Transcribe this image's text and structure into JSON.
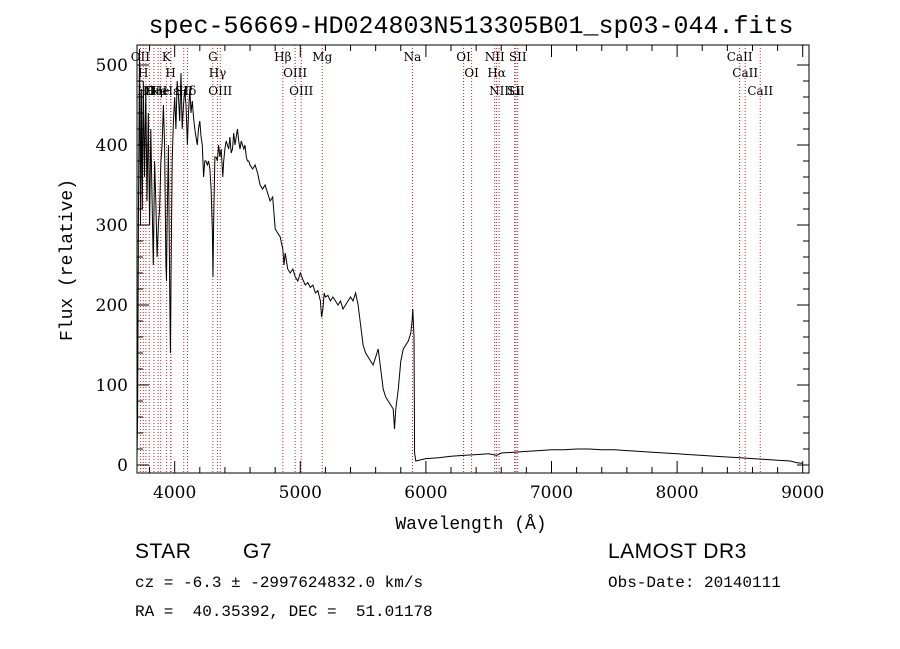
{
  "chart_data": {
    "type": "line",
    "title": "spec-56669-HD024803N513305B01_sp03-044.fits",
    "xlabel": "Wavelength (Å)",
    "ylabel": "Flux (relative)",
    "xlim": [
      3700,
      9050
    ],
    "ylim": [
      -10,
      525
    ],
    "x_ticks": [
      4000,
      5000,
      6000,
      7000,
      8000,
      9000
    ],
    "y_ticks": [
      0,
      100,
      200,
      300,
      400,
      500
    ],
    "grid": false,
    "series": [
      {
        "points": [
          [
            3700,
            10
          ],
          [
            3705,
            60
          ],
          [
            3712,
            320
          ],
          [
            3720,
            520
          ],
          [
            3728,
            300
          ],
          [
            3735,
            470
          ],
          [
            3742,
            320
          ],
          [
            3750,
            480
          ],
          [
            3760,
            360
          ],
          [
            3770,
            470
          ],
          [
            3780,
            330
          ],
          [
            3790,
            440
          ],
          [
            3800,
            300
          ],
          [
            3810,
            420
          ],
          [
            3820,
            330
          ],
          [
            3830,
            250
          ],
          [
            3840,
            380
          ],
          [
            3850,
            330
          ],
          [
            3860,
            260
          ],
          [
            3870,
            300
          ],
          [
            3880,
            320
          ],
          [
            3890,
            380
          ],
          [
            3900,
            400
          ],
          [
            3910,
            450
          ],
          [
            3920,
            400
          ],
          [
            3930,
            250
          ],
          [
            3935,
            230
          ],
          [
            3940,
            300
          ],
          [
            3950,
            400
          ],
          [
            3960,
            220
          ],
          [
            3966,
            140
          ],
          [
            3972,
            260
          ],
          [
            3980,
            380
          ],
          [
            3990,
            430
          ],
          [
            4000,
            460
          ],
          [
            4010,
            420
          ],
          [
            4020,
            480
          ],
          [
            4030,
            460
          ],
          [
            4040,
            430
          ],
          [
            4050,
            490
          ],
          [
            4060,
            420
          ],
          [
            4070,
            450
          ],
          [
            4080,
            470
          ],
          [
            4090,
            450
          ],
          [
            4101,
            400
          ],
          [
            4110,
            440
          ],
          [
            4120,
            470
          ],
          [
            4130,
            440
          ],
          [
            4140,
            455
          ],
          [
            4150,
            435
          ],
          [
            4160,
            420
          ],
          [
            4170,
            410
          ],
          [
            4180,
            400
          ],
          [
            4190,
            420
          ],
          [
            4200,
            430
          ],
          [
            4210,
            410
          ],
          [
            4220,
            400
          ],
          [
            4230,
            360
          ],
          [
            4240,
            380
          ],
          [
            4250,
            380
          ],
          [
            4260,
            375
          ],
          [
            4270,
            380
          ],
          [
            4280,
            370
          ],
          [
            4290,
            345
          ],
          [
            4300,
            290
          ],
          [
            4305,
            235
          ],
          [
            4310,
            300
          ],
          [
            4320,
            385
          ],
          [
            4330,
            385
          ],
          [
            4340,
            380
          ],
          [
            4350,
            400
          ],
          [
            4360,
            385
          ],
          [
            4370,
            395
          ],
          [
            4383,
            360
          ],
          [
            4390,
            380
          ],
          [
            4400,
            395
          ],
          [
            4410,
            405
          ],
          [
            4420,
            400
          ],
          [
            4430,
            395
          ],
          [
            4440,
            410
          ],
          [
            4450,
            390
          ],
          [
            4460,
            395
          ],
          [
            4470,
            415
          ],
          [
            4480,
            400
          ],
          [
            4490,
            410
          ],
          [
            4500,
            420
          ],
          [
            4510,
            405
          ],
          [
            4520,
            395
          ],
          [
            4530,
            405
          ],
          [
            4540,
            400
          ],
          [
            4550,
            395
          ],
          [
            4560,
            400
          ],
          [
            4570,
            385
          ],
          [
            4580,
            380
          ],
          [
            4590,
            380
          ],
          [
            4600,
            375
          ],
          [
            4620,
            370
          ],
          [
            4640,
            375
          ],
          [
            4660,
            365
          ],
          [
            4680,
            350
          ],
          [
            4700,
            345
          ],
          [
            4720,
            350
          ],
          [
            4740,
            340
          ],
          [
            4760,
            330
          ],
          [
            4780,
            335
          ],
          [
            4800,
            295
          ],
          [
            4820,
            290
          ],
          [
            4840,
            285
          ],
          [
            4861,
            270
          ],
          [
            4870,
            250
          ],
          [
            4880,
            265
          ],
          [
            4900,
            245
          ],
          [
            4920,
            240
          ],
          [
            4940,
            245
          ],
          [
            4960,
            235
          ],
          [
            4980,
            230
          ],
          [
            5000,
            240
          ],
          [
            5020,
            232
          ],
          [
            5040,
            225
          ],
          [
            5060,
            228
          ],
          [
            5080,
            222
          ],
          [
            5100,
            225
          ],
          [
            5120,
            215
          ],
          [
            5140,
            218
          ],
          [
            5160,
            205
          ],
          [
            5170,
            185
          ],
          [
            5180,
            195
          ],
          [
            5190,
            215
          ],
          [
            5200,
            210
          ],
          [
            5220,
            212
          ],
          [
            5240,
            205
          ],
          [
            5260,
            210
          ],
          [
            5280,
            205
          ],
          [
            5300,
            200
          ],
          [
            5320,
            205
          ],
          [
            5340,
            195
          ],
          [
            5360,
            200
          ],
          [
            5380,
            205
          ],
          [
            5400,
            210
          ],
          [
            5420,
            205
          ],
          [
            5440,
            215
          ],
          [
            5460,
            200
          ],
          [
            5480,
            175
          ],
          [
            5500,
            150
          ],
          [
            5520,
            140
          ],
          [
            5540,
            135
          ],
          [
            5560,
            130
          ],
          [
            5580,
            125
          ],
          [
            5600,
            135
          ],
          [
            5620,
            145
          ],
          [
            5640,
            120
          ],
          [
            5660,
            95
          ],
          [
            5680,
            85
          ],
          [
            5700,
            80
          ],
          [
            5720,
            75
          ],
          [
            5740,
            70
          ],
          [
            5750,
            45
          ],
          [
            5760,
            70
          ],
          [
            5780,
            95
          ],
          [
            5800,
            130
          ],
          [
            5820,
            145
          ],
          [
            5840,
            150
          ],
          [
            5860,
            155
          ],
          [
            5880,
            165
          ],
          [
            5890,
            180
          ],
          [
            5896,
            195
          ],
          [
            5905,
            160
          ],
          [
            5910,
            15
          ],
          [
            5920,
            5
          ],
          [
            6000,
            8
          ],
          [
            6100,
            9
          ],
          [
            6200,
            11
          ],
          [
            6300,
            12
          ],
          [
            6400,
            13
          ],
          [
            6500,
            14
          ],
          [
            6563,
            12
          ],
          [
            6600,
            15
          ],
          [
            6700,
            16
          ],
          [
            6800,
            17
          ],
          [
            6900,
            18
          ],
          [
            7000,
            19
          ],
          [
            7100,
            19
          ],
          [
            7200,
            20
          ],
          [
            7300,
            20
          ],
          [
            7400,
            19
          ],
          [
            7500,
            19
          ],
          [
            7600,
            18
          ],
          [
            7700,
            17
          ],
          [
            7800,
            16
          ],
          [
            7900,
            15
          ],
          [
            8000,
            14
          ],
          [
            8100,
            13
          ],
          [
            8200,
            12
          ],
          [
            8300,
            11
          ],
          [
            8400,
            10
          ],
          [
            8500,
            9
          ],
          [
            8600,
            8
          ],
          [
            8700,
            7
          ],
          [
            8800,
            6
          ],
          [
            8900,
            5
          ],
          [
            8950,
            3
          ],
          [
            9000,
            2
          ]
        ]
      }
    ],
    "line_marks": [
      {
        "x": 3727,
        "top": "OII"
      },
      {
        "x": 3750,
        "top": "H"
      },
      {
        "x": 3771,
        "top": "Hθ"
      },
      {
        "x": 3798,
        "top": "O"
      },
      {
        "x": 3835,
        "top": "Hη"
      },
      {
        "x": 3869,
        "top": "Ne"
      },
      {
        "x": 3889,
        "top": "He"
      },
      {
        "x": 3934,
        "top": "K"
      },
      {
        "x": 3968,
        "top": "H"
      },
      {
        "x": 3970,
        "top": "Hε"
      },
      {
        "x": 4072,
        "top": "SII"
      },
      {
        "x": 4102,
        "top": "Hδ"
      },
      {
        "x": 4304,
        "top": "G"
      },
      {
        "x": 4341,
        "top": "Hγ"
      },
      {
        "x": 4363,
        "top": "OIII"
      },
      {
        "x": 4861,
        "top": "Hβ"
      },
      {
        "x": 4959,
        "top": "OIII"
      },
      {
        "x": 5007,
        "top": "OIII"
      },
      {
        "x": 5175,
        "top": "Mg"
      },
      {
        "x": 5893,
        "top": "Na"
      },
      {
        "x": 6300,
        "top": "OI"
      },
      {
        "x": 6364,
        "top": "OI"
      },
      {
        "x": 6548,
        "top": "NII"
      },
      {
        "x": 6563,
        "top": "Hα"
      },
      {
        "x": 6583,
        "top": "NII"
      },
      {
        "x": 6707,
        "top": "Li"
      },
      {
        "x": 6716,
        "top": "SII"
      },
      {
        "x": 6731,
        "top": "SII"
      },
      {
        "x": 8498,
        "top": "CaII"
      },
      {
        "x": 8542,
        "top": "CaII"
      },
      {
        "x": 8662,
        "top": "CaII"
      }
    ],
    "colors": {
      "spectrum": "#000000",
      "line_marks": "#cc2222"
    }
  },
  "info": {
    "class_label": "STAR",
    "subclass_label": "G7",
    "cz_line": "cz = -6.3 ± -2997624832.0 km/s",
    "radec_line": "RA =  40.35392, DEC =  51.01178",
    "survey_label": "LAMOST DR3",
    "obs_date_line": "Obs-Date: 20140111"
  }
}
